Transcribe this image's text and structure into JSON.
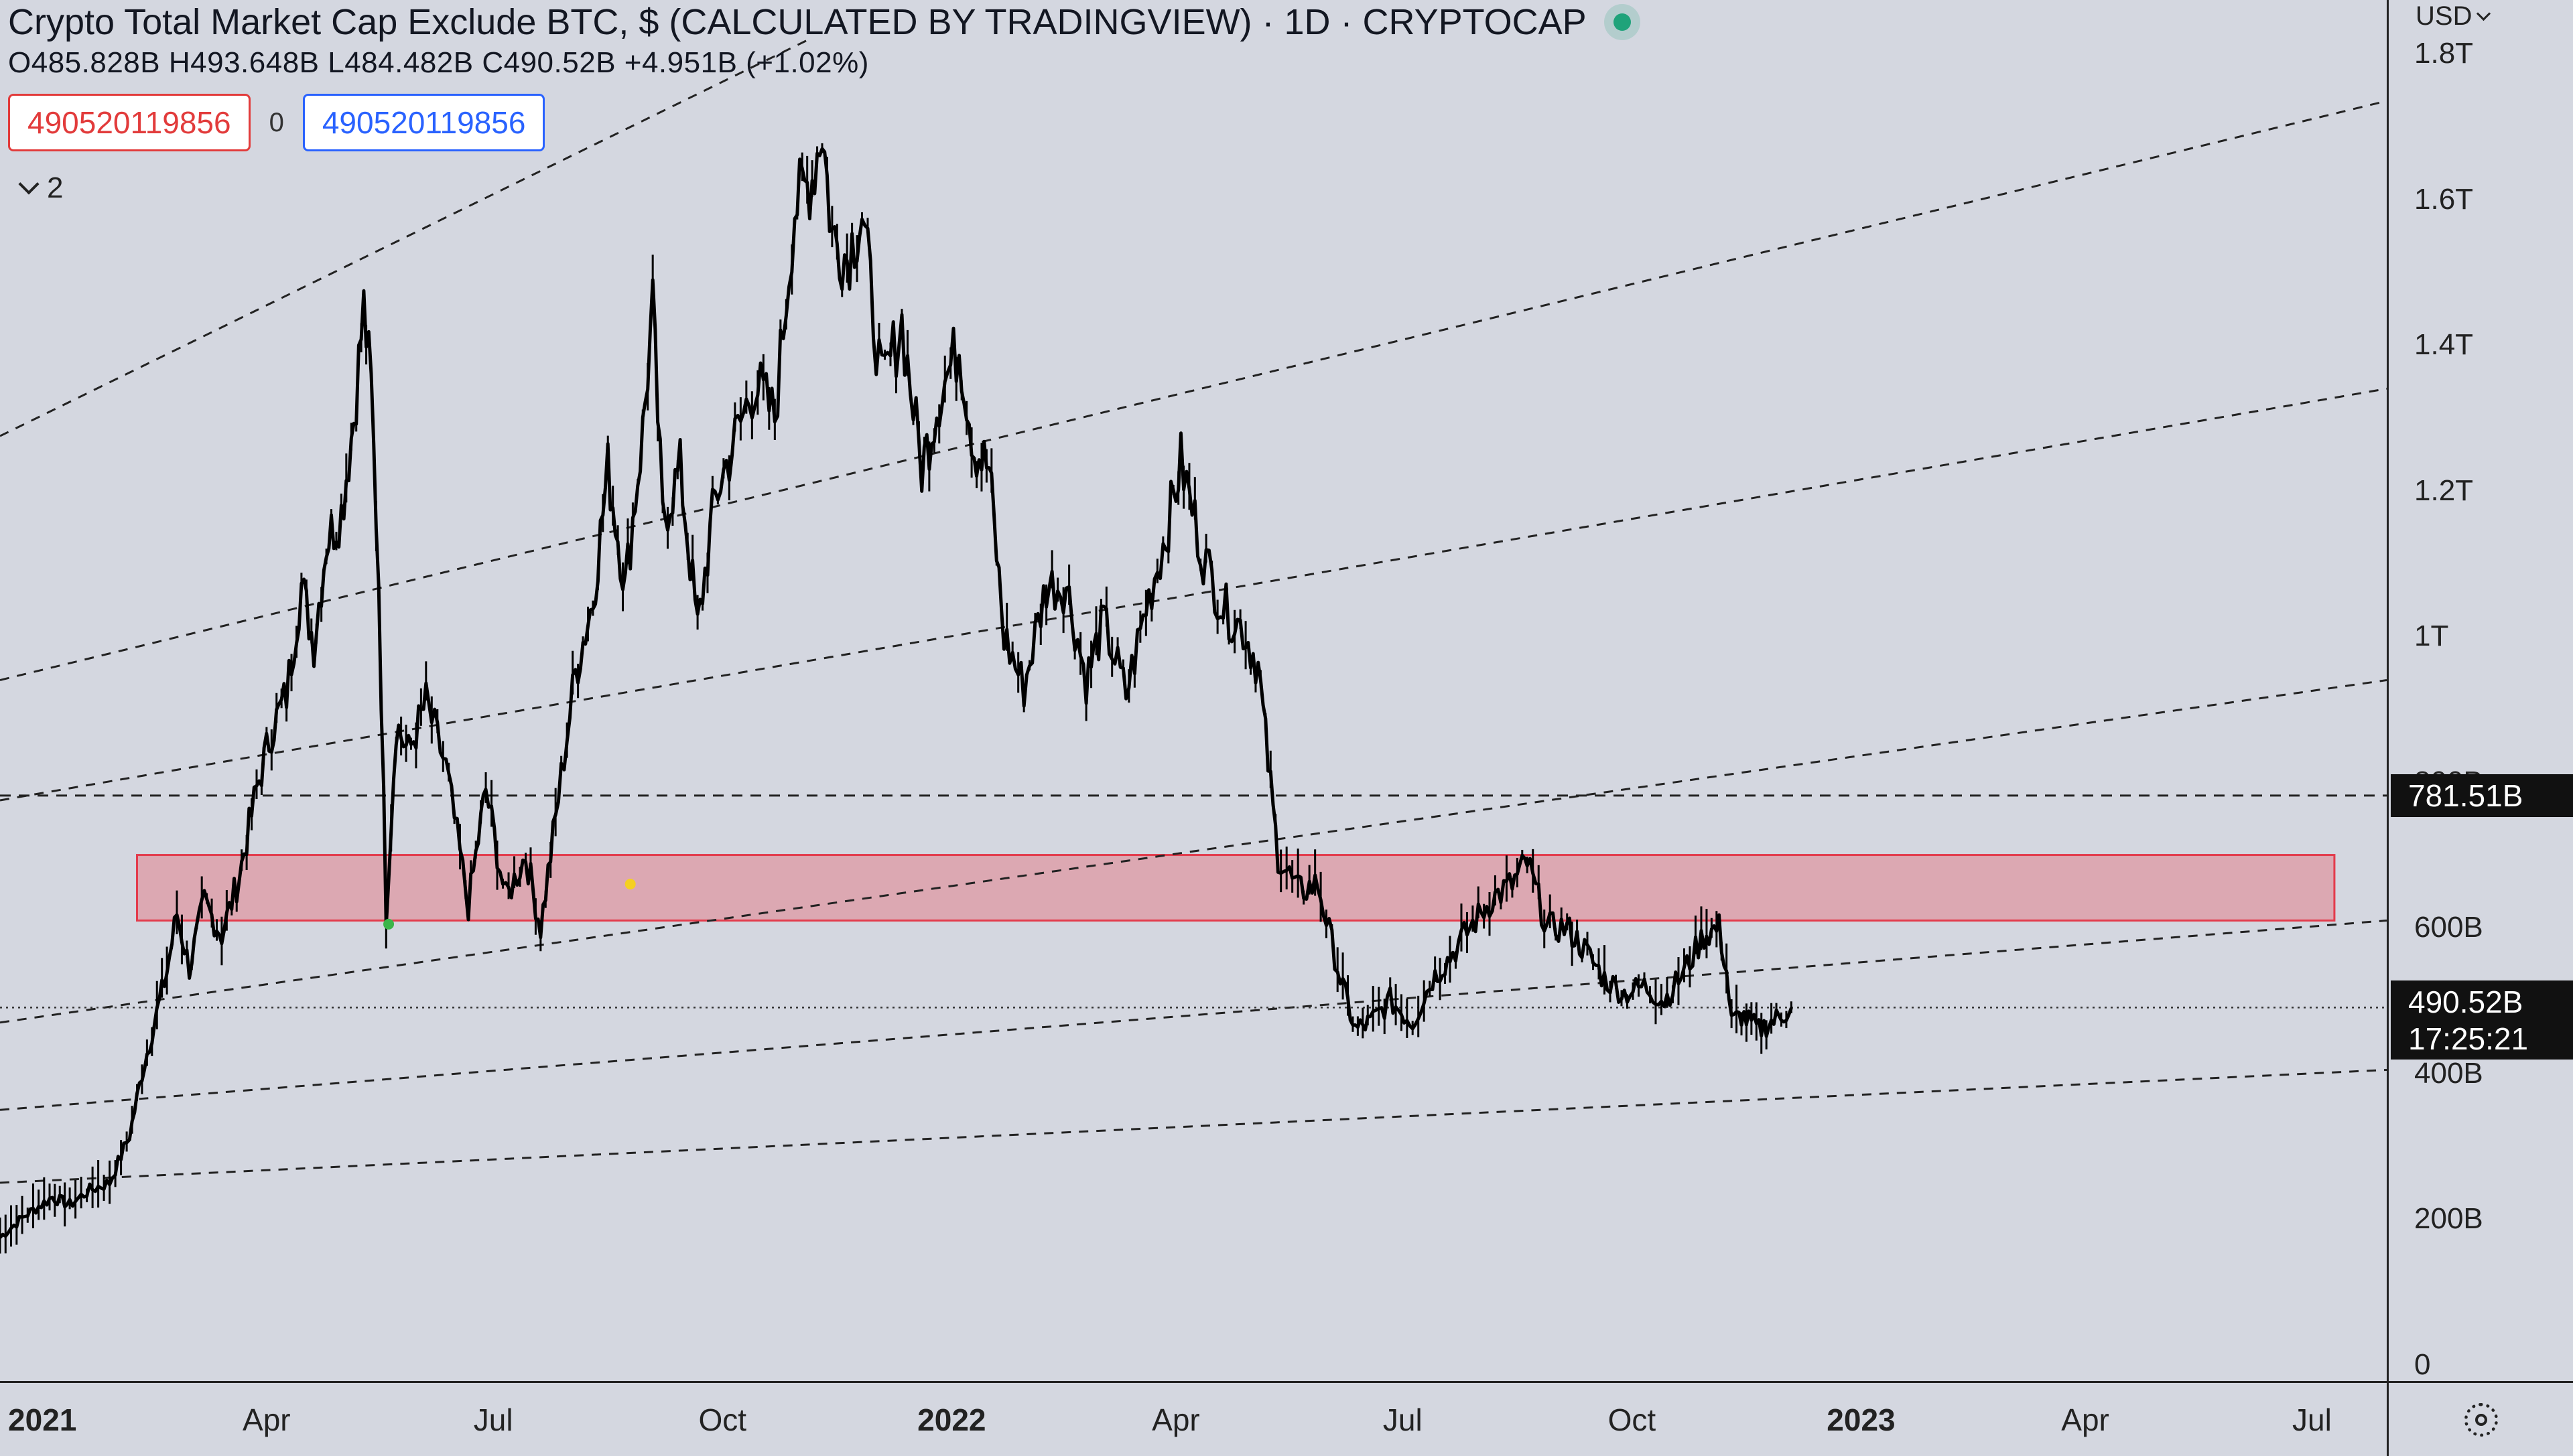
{
  "header": {
    "title": "Crypto Total Market Cap Exclude BTC, $ (CALCULATED BY TRADINGVIEW) · 1D · CRYPTOCAP",
    "ohlc": "O485.828B H493.648B L484.482B C490.52B +4.951B (+1.02%)",
    "input_left": "490520119856",
    "input_middle": "0",
    "input_right": "490520119856",
    "collapsed_count": "2",
    "status_color": "#1fa37a"
  },
  "price_axis": {
    "currency": "USD",
    "labels": [
      "1.8T",
      "1.6T",
      "1.4T",
      "1.2T",
      "1T",
      "800B",
      "600B",
      "400B",
      "200B",
      "0"
    ],
    "last_price": "490.52B",
    "countdown": "17:25:21",
    "horizontal_line_value": "781.51B"
  },
  "time_axis": {
    "labels": [
      {
        "text": "2021",
        "year": true
      },
      {
        "text": "Apr",
        "year": false
      },
      {
        "text": "Jul",
        "year": false
      },
      {
        "text": "Oct",
        "year": false
      },
      {
        "text": "2022",
        "year": true
      },
      {
        "text": "Apr",
        "year": false
      },
      {
        "text": "Jul",
        "year": false
      },
      {
        "text": "Oct",
        "year": false
      },
      {
        "text": "2023",
        "year": true
      },
      {
        "text": "Apr",
        "year": false
      },
      {
        "text": "Jul",
        "year": false
      }
    ]
  },
  "chart_data": {
    "type": "line",
    "title": "Crypto Total Market Cap Exclude BTC, $ (CALCULATED BY TRADINGVIEW) · 1D · CRYPTOCAP",
    "xlabel": "",
    "ylabel": "",
    "ylim": [
      0,
      1800
    ],
    "x_range": [
      "2020-12-15",
      "2023-07-31"
    ],
    "y_unit": "B USD",
    "series": [
      {
        "x": [
          "2020-12-15",
          "2020-12-25",
          "2021-01-05",
          "2021-01-12",
          "2021-01-20",
          "2021-01-28",
          "2021-02-05",
          "2021-02-10",
          "2021-02-15",
          "2021-02-20",
          "2021-02-24",
          "2021-03-01",
          "2021-03-07",
          "2021-03-14",
          "2021-03-21",
          "2021-03-28",
          "2021-04-03",
          "2021-04-09",
          "2021-04-15",
          "2021-04-20",
          "2021-04-25",
          "2021-05-01",
          "2021-05-06",
          "2021-05-10",
          "2021-05-13",
          "2021-05-16",
          "2021-05-19",
          "2021-05-23",
          "2021-05-28",
          "2021-06-04",
          "2021-06-12",
          "2021-06-21",
          "2021-06-28",
          "2021-07-06",
          "2021-07-14",
          "2021-07-20",
          "2021-07-26",
          "2021-08-03",
          "2021-08-10",
          "2021-08-16",
          "2021-08-23",
          "2021-08-30",
          "2021-09-03",
          "2021-09-07",
          "2021-09-14",
          "2021-09-21",
          "2021-09-28",
          "2021-10-06",
          "2021-10-14",
          "2021-10-22",
          "2021-10-30",
          "2021-11-06",
          "2021-11-10",
          "2021-11-14",
          "2021-11-20",
          "2021-11-26",
          "2021-12-04",
          "2021-12-12",
          "2021-12-20",
          "2021-12-27",
          "2022-01-04",
          "2022-01-10",
          "2022-01-16",
          "2022-01-22",
          "2022-01-30",
          "2022-02-08",
          "2022-02-16",
          "2022-02-24",
          "2022-03-03",
          "2022-03-12",
          "2022-03-20",
          "2022-03-28",
          "2022-04-03",
          "2022-04-12",
          "2022-04-20",
          "2022-04-28",
          "2022-05-04",
          "2022-05-07",
          "2022-05-10",
          "2022-05-12",
          "2022-05-20",
          "2022-05-28",
          "2022-06-06",
          "2022-06-12",
          "2022-06-18",
          "2022-06-26",
          "2022-07-05",
          "2022-07-13",
          "2022-07-20",
          "2022-07-28",
          "2022-08-06",
          "2022-08-14",
          "2022-08-20",
          "2022-08-28",
          "2022-09-05",
          "2022-09-12",
          "2022-09-20",
          "2022-09-28",
          "2022-10-06",
          "2022-10-14",
          "2022-10-22",
          "2022-10-30",
          "2022-11-05",
          "2022-11-08",
          "2022-11-10",
          "2022-11-14",
          "2022-11-21",
          "2022-11-28",
          "2022-12-04"
        ],
        "values": [
          175,
          205,
          230,
          220,
          240,
          250,
          315,
          400,
          470,
          540,
          620,
          545,
          635,
          590,
          670,
          790,
          870,
          920,
          1070,
          990,
          1130,
          1170,
          1300,
          1450,
          1340,
          1080,
          620,
          880,
          840,
          910,
          820,
          630,
          790,
          640,
          700,
          600,
          750,
          950,
          1050,
          1230,
          1070,
          1280,
          1450,
          1160,
          1230,
          1010,
          1190,
          1270,
          1350,
          1300,
          1590,
          1630,
          1700,
          1550,
          1520,
          1580,
          1340,
          1430,
          1230,
          1330,
          1400,
          1260,
          1230,
          1000,
          930,
          1070,
          1070,
          940,
          1020,
          920,
          1040,
          1140,
          1240,
          1110,
          1040,
          1010,
          960,
          860,
          760,
          700,
          650,
          660,
          530,
          460,
          470,
          500,
          470,
          530,
          560,
          600,
          640,
          660,
          690,
          600,
          600,
          570,
          530,
          510,
          520,
          500,
          540,
          590,
          600,
          540,
          470,
          480,
          460,
          475,
          490
        ]
      }
    ],
    "zone": {
      "y_low": 610,
      "y_high": 700,
      "x_start": "2021-02-08",
      "x_end": "2023-07-10",
      "color": "#e8626e"
    },
    "horizontal_lines": [
      {
        "y": 781.51,
        "label": "781.51B"
      },
      {
        "y": 490.52,
        "label": "490.52B"
      }
    ],
    "trend_lines": [
      {
        "x1": "2020-12-15",
        "y1": 1275,
        "x2": "2021-11-05",
        "y2": 1820
      },
      {
        "x1": "2020-12-15",
        "y1": 940,
        "x2": "2023-07-31",
        "y2": 1735
      },
      {
        "x1": "2020-12-15",
        "y1": 775,
        "x2": "2023-07-31",
        "y2": 1340
      },
      {
        "x1": "2020-12-15",
        "y1": 470,
        "x2": "2023-07-31",
        "y2": 940
      },
      {
        "x1": "2020-12-15",
        "y1": 350,
        "x2": "2023-07-31",
        "y2": 610
      },
      {
        "x1": "2020-12-15",
        "y1": 250,
        "x2": "2023-07-31",
        "y2": 405
      }
    ],
    "markers": [
      {
        "x": "2021-05-20",
        "y": 605,
        "color": "#3cb54a"
      },
      {
        "x": "2021-08-25",
        "y": 660,
        "color": "#f5d020"
      }
    ],
    "grid": false
  }
}
